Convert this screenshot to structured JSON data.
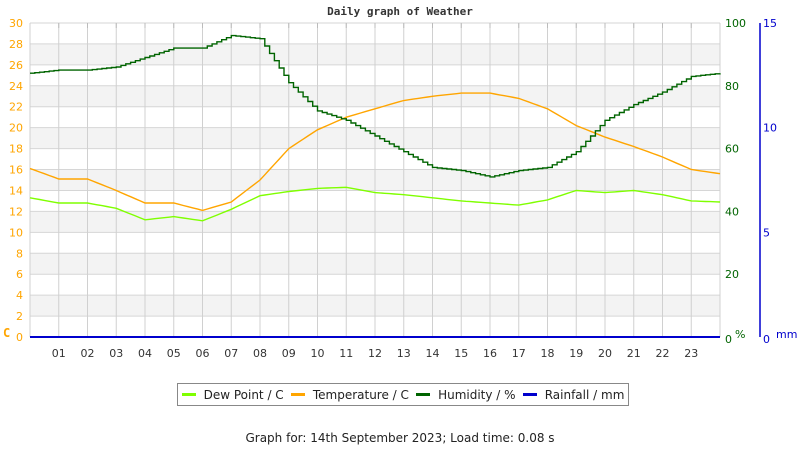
{
  "title": "Daily graph of Weather",
  "footer": "Graph for: 14th September 2023; Load time: 0.08 s",
  "legend": [
    {
      "label": "Dew Point / C",
      "color": "#7FFF00"
    },
    {
      "label": "Temperature / C",
      "color": "#FFA500"
    },
    {
      "label": "Humidity / %",
      "color": "#006400"
    },
    {
      "label": "Rainfall / mm",
      "color": "#0000CD"
    }
  ],
  "chart_data": {
    "type": "line",
    "title": "Daily graph of Weather",
    "x": [
      0,
      1,
      2,
      3,
      4,
      5,
      6,
      7,
      8,
      9,
      10,
      11,
      12,
      13,
      14,
      15,
      16,
      17,
      18,
      19,
      20,
      21,
      22,
      23,
      24
    ],
    "x_tick_labels": [
      "01",
      "02",
      "03",
      "04",
      "05",
      "06",
      "07",
      "08",
      "09",
      "10",
      "11",
      "12",
      "13",
      "14",
      "15",
      "16",
      "17",
      "18",
      "19",
      "20",
      "21",
      "22",
      "23"
    ],
    "left_axis": {
      "label": "C",
      "ticks": [
        0,
        2,
        4,
        6,
        8,
        10,
        12,
        14,
        16,
        18,
        20,
        22,
        24,
        26,
        28,
        30
      ],
      "range": [
        0,
        30
      ],
      "color": "#FFA500"
    },
    "right_axis_humidity": {
      "label": "%",
      "ticks": [
        0,
        20,
        40,
        60,
        80,
        100
      ],
      "range": [
        0,
        100
      ],
      "color": "#006400"
    },
    "right_axis_rain": {
      "label": "mm",
      "ticks": [
        0,
        5,
        10,
        15
      ],
      "range": [
        0,
        15
      ],
      "color": "#0000CD"
    },
    "series": [
      {
        "name": "Dew Point / C",
        "axis": "left",
        "color": "#7FFF00",
        "values": [
          13.3,
          12.8,
          12.8,
          12.3,
          11.2,
          11.5,
          11.1,
          12.2,
          13.5,
          13.9,
          14.2,
          14.3,
          13.8,
          13.6,
          13.3,
          13.0,
          12.8,
          12.6,
          13.1,
          14.0,
          13.8,
          14.0,
          13.6,
          13.0,
          12.9
        ]
      },
      {
        "name": "Temperature / C",
        "axis": "left",
        "color": "#FFA500",
        "values": [
          16.1,
          15.1,
          15.1,
          14.0,
          12.8,
          12.8,
          12.1,
          12.9,
          15.0,
          18.0,
          19.8,
          21.0,
          21.8,
          22.6,
          23.0,
          23.3,
          23.3,
          22.8,
          21.8,
          20.2,
          19.1,
          18.2,
          17.2,
          16.0,
          15.6
        ]
      },
      {
        "name": "Humidity / %",
        "axis": "right_humidity",
        "color": "#006400",
        "values": [
          84,
          85,
          85,
          86,
          89,
          92,
          92,
          96,
          95,
          81,
          72,
          69,
          64,
          59,
          54,
          53,
          51,
          53,
          54,
          59,
          69,
          74,
          78,
          83,
          84
        ]
      },
      {
        "name": "Rainfall / mm",
        "axis": "right_rain",
        "color": "#0000CD",
        "values": [
          0,
          0,
          0,
          0,
          0,
          0,
          0,
          0,
          0,
          0,
          0,
          0,
          0,
          0,
          0,
          0,
          0,
          0,
          0,
          0,
          0,
          0,
          0,
          0,
          0
        ]
      }
    ],
    "grid": true,
    "legend_position": "bottom"
  }
}
